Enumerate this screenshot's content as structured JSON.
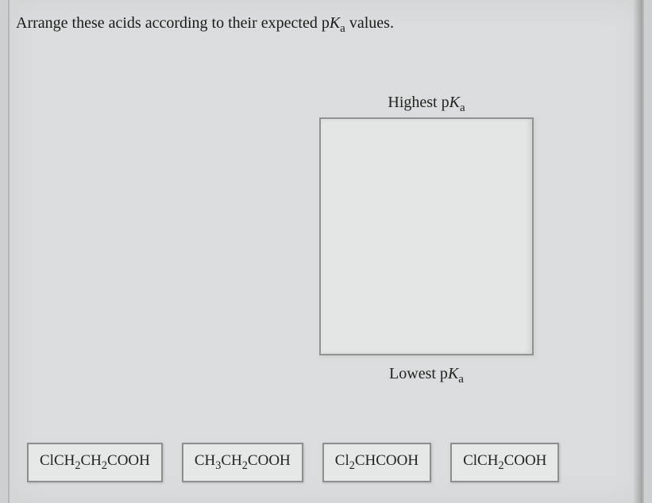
{
  "prompt_prefix": "Arrange these acids according to their expected p",
  "prompt_K": "K",
  "prompt_sub": "a",
  "prompt_suffix": " values.",
  "labels": {
    "top_prefix": "Highest p",
    "top_K": "K",
    "top_sub": "a",
    "bottom_prefix": "Lowest p",
    "bottom_K": "K",
    "bottom_sub": "a"
  },
  "tiles": [
    {
      "parts": [
        "ClCH",
        "2",
        "CH",
        "2",
        "COOH"
      ]
    },
    {
      "parts": [
        "CH",
        "3",
        "CH",
        "2",
        "COOH"
      ]
    },
    {
      "parts": [
        "Cl",
        "2",
        "CHCOOH"
      ]
    },
    {
      "parts": [
        "ClCH",
        "2",
        "COOH"
      ]
    }
  ],
  "style": {
    "bg": "#dadddd",
    "tile_bg": "#e6e8e8",
    "border": "#8c8f90",
    "font": "Georgia"
  }
}
